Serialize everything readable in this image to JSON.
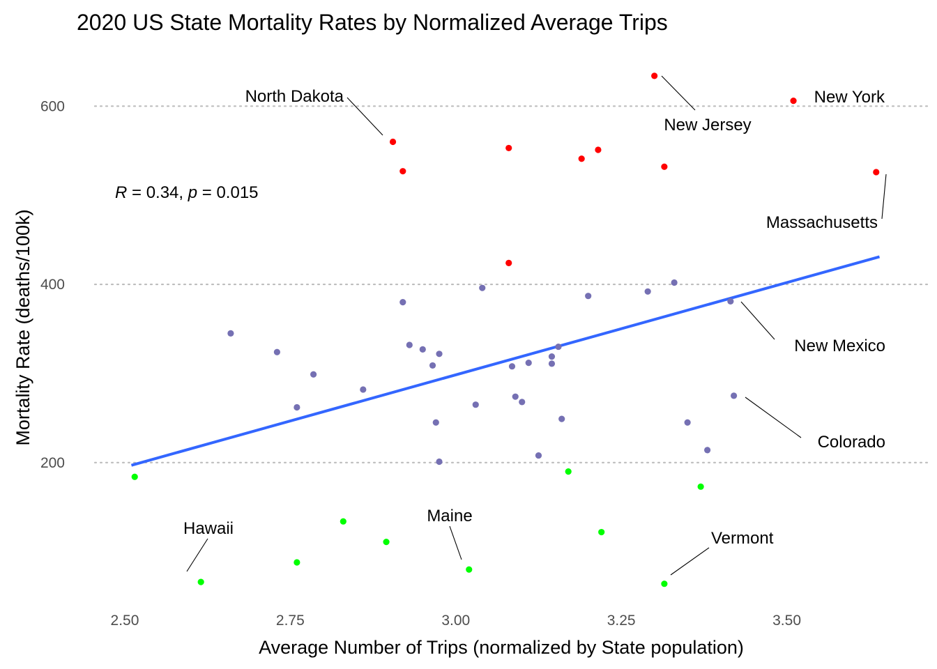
{
  "chart_data": {
    "type": "scatter",
    "title": "2020 US State Mortality Rates by Normalized Average Trips",
    "xlabel": "Average Number of Trips (normalized by State population)",
    "ylabel": "Mortality Rate (deaths/100k)",
    "xlim": [
      2.44,
      3.67
    ],
    "ylim": [
      45,
      655
    ],
    "x_ticks": [
      "2.50",
      "2.75",
      "3.00",
      "3.25",
      "3.50"
    ],
    "x_tick_values": [
      2.5,
      2.75,
      3.0,
      3.25,
      3.5
    ],
    "y_ticks": [
      "200",
      "400",
      "600"
    ],
    "y_tick_values": [
      200,
      400,
      600
    ],
    "grid": "horizontal-major-dotted",
    "colors": {
      "high": "#ff0000",
      "mid": "#7570b3",
      "low": "#00ff00",
      "trend": "#3366ff"
    },
    "stat_annotation": {
      "r_symbol": "R",
      "r_text": " = 0.34, ",
      "p_symbol": "p",
      "p_text": " = 0.015"
    },
    "trend": {
      "x": [
        2.51,
        3.64
      ],
      "y": [
        197,
        431
      ]
    },
    "points": [
      {
        "x": 3.3,
        "y": 634,
        "group": "high"
      },
      {
        "x": 3.51,
        "y": 606,
        "group": "high"
      },
      {
        "x": 2.905,
        "y": 560,
        "group": "high"
      },
      {
        "x": 3.08,
        "y": 553,
        "group": "high"
      },
      {
        "x": 3.215,
        "y": 551,
        "group": "high"
      },
      {
        "x": 3.19,
        "y": 541,
        "group": "high"
      },
      {
        "x": 3.315,
        "y": 532,
        "group": "high"
      },
      {
        "x": 2.92,
        "y": 527,
        "group": "high"
      },
      {
        "x": 3.635,
        "y": 526,
        "group": "high"
      },
      {
        "x": 3.08,
        "y": 424,
        "group": "high"
      },
      {
        "x": 3.33,
        "y": 402,
        "group": "mid"
      },
      {
        "x": 3.04,
        "y": 396,
        "group": "mid"
      },
      {
        "x": 3.29,
        "y": 392,
        "group": "mid"
      },
      {
        "x": 3.2,
        "y": 387,
        "group": "mid"
      },
      {
        "x": 3.415,
        "y": 381,
        "group": "mid"
      },
      {
        "x": 2.92,
        "y": 380,
        "group": "mid"
      },
      {
        "x": 2.66,
        "y": 345,
        "group": "mid"
      },
      {
        "x": 2.93,
        "y": 332,
        "group": "mid"
      },
      {
        "x": 3.155,
        "y": 330,
        "group": "mid"
      },
      {
        "x": 2.95,
        "y": 327,
        "group": "mid"
      },
      {
        "x": 2.73,
        "y": 324,
        "group": "mid"
      },
      {
        "x": 2.975,
        "y": 322,
        "group": "mid"
      },
      {
        "x": 3.145,
        "y": 319,
        "group": "mid"
      },
      {
        "x": 3.11,
        "y": 312,
        "group": "mid"
      },
      {
        "x": 3.145,
        "y": 311,
        "group": "mid"
      },
      {
        "x": 2.965,
        "y": 309,
        "group": "mid"
      },
      {
        "x": 3.085,
        "y": 308,
        "group": "mid"
      },
      {
        "x": 2.785,
        "y": 299,
        "group": "mid"
      },
      {
        "x": 2.86,
        "y": 282,
        "group": "mid"
      },
      {
        "x": 3.42,
        "y": 275,
        "group": "mid"
      },
      {
        "x": 3.09,
        "y": 274,
        "group": "mid"
      },
      {
        "x": 3.1,
        "y": 268,
        "group": "mid"
      },
      {
        "x": 3.03,
        "y": 265,
        "group": "mid"
      },
      {
        "x": 2.76,
        "y": 262,
        "group": "mid"
      },
      {
        "x": 3.16,
        "y": 249,
        "group": "mid"
      },
      {
        "x": 2.97,
        "y": 245,
        "group": "mid"
      },
      {
        "x": 3.35,
        "y": 245,
        "group": "mid"
      },
      {
        "x": 3.38,
        "y": 214,
        "group": "mid"
      },
      {
        "x": 3.125,
        "y": 208,
        "group": "mid"
      },
      {
        "x": 2.975,
        "y": 201,
        "group": "mid"
      },
      {
        "x": 3.17,
        "y": 190,
        "group": "low"
      },
      {
        "x": 2.515,
        "y": 184,
        "group": "low"
      },
      {
        "x": 3.37,
        "y": 173,
        "group": "low"
      },
      {
        "x": 2.83,
        "y": 134,
        "group": "low"
      },
      {
        "x": 3.22,
        "y": 122,
        "group": "low"
      },
      {
        "x": 2.895,
        "y": 111,
        "group": "low"
      },
      {
        "x": 2.76,
        "y": 88,
        "group": "low"
      },
      {
        "x": 3.02,
        "y": 80,
        "group": "low"
      },
      {
        "x": 2.615,
        "y": 66,
        "group": "low"
      },
      {
        "x": 3.315,
        "y": 64,
        "group": "low"
      }
    ],
    "annotations": [
      {
        "text": "North Dakota",
        "x": 2.905,
        "y": 560
      },
      {
        "text": "New Jersey",
        "x": 3.3,
        "y": 634
      },
      {
        "text": "New York",
        "x": 3.51,
        "y": 606
      },
      {
        "text": "Massachusetts",
        "x": 3.635,
        "y": 526
      },
      {
        "text": "New Mexico",
        "x": 3.415,
        "y": 381
      },
      {
        "text": "Colorado",
        "x": 3.42,
        "y": 275
      },
      {
        "text": "Maine",
        "x": 3.02,
        "y": 80
      },
      {
        "text": "Hawaii",
        "x": 2.615,
        "y": 66
      },
      {
        "text": "Vermont",
        "x": 3.315,
        "y": 64
      }
    ]
  }
}
